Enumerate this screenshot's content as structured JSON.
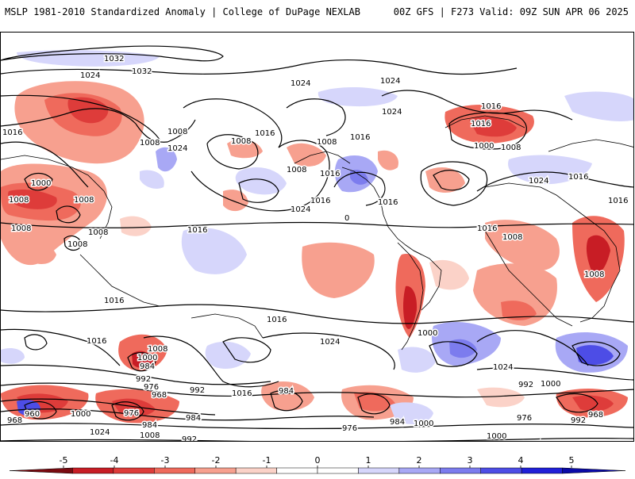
{
  "header": {
    "left": "MSLP 1981-2010 Standardized Anomaly | College of DuPage NEXLAB",
    "right": "00Z GFS | F273 Valid: 09Z SUN APR 06 2025"
  },
  "colorbar": {
    "ticks": [
      {
        "label": "-5",
        "value": -5
      },
      {
        "label": "-4",
        "value": -4
      },
      {
        "label": "-3",
        "value": -3
      },
      {
        "label": "-2",
        "value": -2
      },
      {
        "label": "-1",
        "value": -1
      },
      {
        "label": "0",
        "value": 0
      },
      {
        "label": "1",
        "value": 1
      },
      {
        "label": "2",
        "value": 2
      },
      {
        "label": "3",
        "value": 3
      },
      {
        "label": "4",
        "value": 4
      },
      {
        "label": "5",
        "value": 5
      }
    ],
    "colors": [
      "#7a0a10",
      "#c81d25",
      "#de3c3a",
      "#ef6a5c",
      "#f7a08f",
      "#fbd2c8",
      "#ffffff",
      "#ffffff",
      "#d6d6fb",
      "#a8a8f5",
      "#7c7cee",
      "#4d4de6",
      "#2020d8",
      "#0a0aa8"
    ]
  },
  "contour_labels": [
    "1032",
    "1032",
    "1024",
    "1024",
    "1024",
    "1024",
    "1016",
    "1016",
    "1008",
    "1008",
    "1016",
    "1016",
    "1016",
    "1008",
    "1008",
    "1024",
    "1016",
    "1000",
    "1008",
    "1008",
    "1000",
    "1008",
    "1008",
    "1024",
    "1016",
    "1008",
    "1016",
    "1008",
    "1008",
    "1016",
    "1008",
    "1016",
    "1016",
    "1024",
    "1016",
    "1016",
    "1008",
    "1000",
    "1024",
    "1016",
    "992",
    "1000",
    "1016",
    "1008",
    "1024",
    "992",
    "1000",
    "984",
    "992",
    "976",
    "968",
    "984",
    "960",
    "968",
    "1000",
    "976",
    "984",
    "1008",
    "1024",
    "992",
    "984",
    "976",
    "984",
    "1000",
    "976",
    "992",
    "968",
    "1000",
    "1008",
    "1016",
    "1008",
    "992",
    "1000",
    "1016",
    "1024",
    "1016",
    "0"
  ]
}
